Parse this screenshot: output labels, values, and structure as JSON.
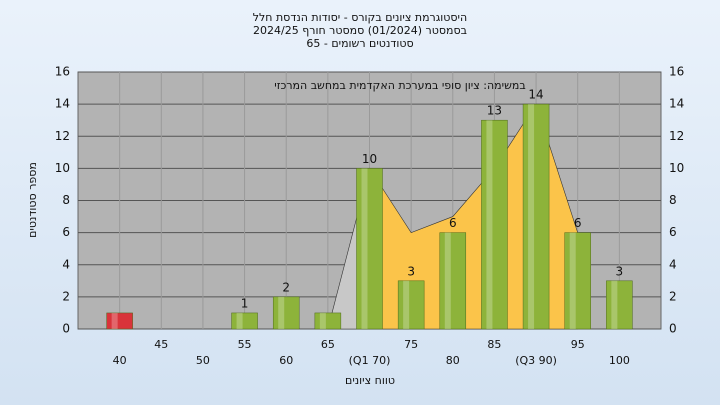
{
  "chart_data": {
    "type": "bar",
    "title": "היסטוגרמת ציונים בקורס - יסודות הנדסת חלל",
    "subtitle": "בסמסטר  (01/2024)  סמסטר חורף 2024/25",
    "subtitle2": "סטודנטים רשומים - 65",
    "annotation": "במשימה: ציון סופי במערכת האקדמית במחשב המרכזי",
    "x_label": "טווח ציונים",
    "y_label": "מספר סטודנטים",
    "categories": [
      "40",
      "45",
      "50",
      "55",
      "60",
      "65",
      "(Q1 70)",
      "75",
      "80",
      "85",
      "(Q3 90)",
      "95",
      "100"
    ],
    "values": [
      1,
      0,
      0,
      1,
      2,
      1,
      10,
      3,
      6,
      13,
      14,
      6,
      3
    ],
    "value_labels": [
      null,
      null,
      null,
      "1",
      "2",
      null,
      "10",
      "3",
      "6",
      "13",
      "14",
      "6",
      "3"
    ],
    "colors": [
      "#d9333a",
      "#8db33a",
      "#8db33a",
      "#8db33a",
      "#8db33a",
      "#8db33a",
      "#8db33a",
      "#8db33a",
      "#8db33a",
      "#8db33a",
      "#8db33a",
      "#8db33a",
      "#8db33a"
    ],
    "areas": [
      {
        "color": "#c8c8c8",
        "values": [
          null,
          null,
          null,
          null,
          null,
          0,
          10,
          null,
          null,
          null,
          null,
          null,
          null
        ]
      },
      {
        "color": "#fbc44a",
        "values": [
          null,
          null,
          null,
          null,
          null,
          null,
          10,
          6,
          7,
          10,
          14,
          6,
          null
        ]
      }
    ],
    "ylim": [
      0,
      16
    ],
    "yticks": [
      0,
      2,
      4,
      6,
      8,
      10,
      12,
      14,
      16
    ],
    "grid": true
  }
}
